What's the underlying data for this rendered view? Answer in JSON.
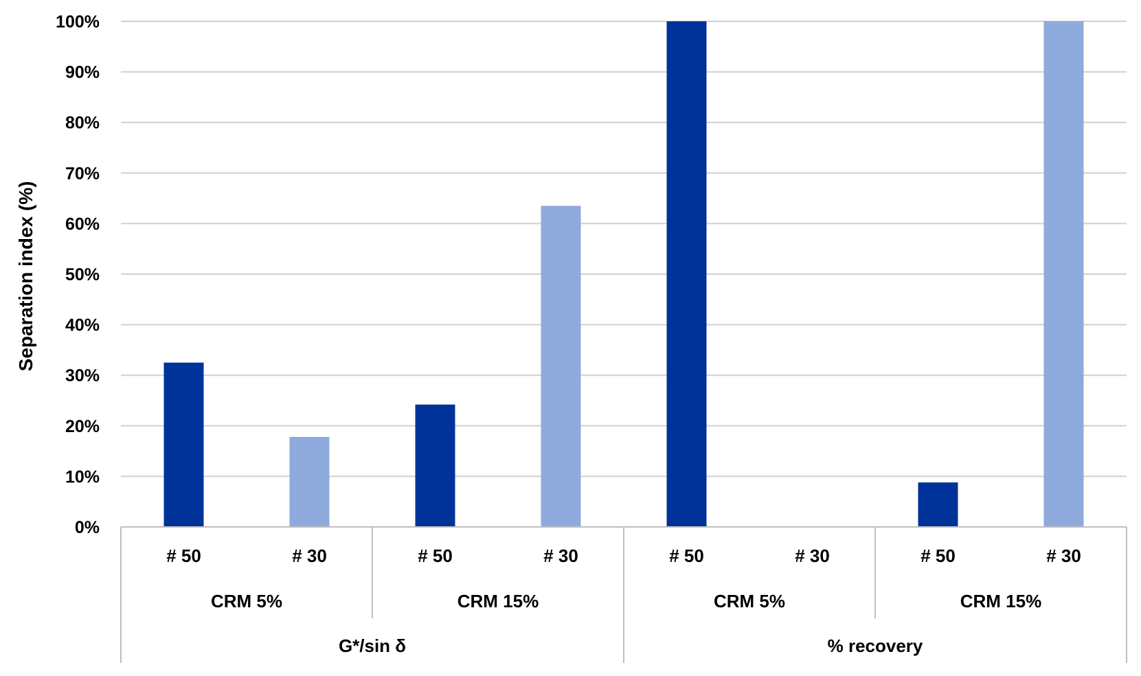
{
  "chart_data": {
    "type": "bar",
    "ylabel": "Separation index (%)",
    "ylim": [
      0,
      100
    ],
    "yticks": [
      "0%",
      "10%",
      "20%",
      "30%",
      "40%",
      "50%",
      "60%",
      "70%",
      "80%",
      "90%",
      "100%"
    ],
    "grid": true,
    "colors": {
      "# 50": "#003399",
      "# 30": "#8faadc"
    },
    "categories": [
      {
        "group": "G*/sin δ",
        "subgroup": "CRM 5%",
        "label": "# 50",
        "value": 32.5
      },
      {
        "group": "G*/sin δ",
        "subgroup": "CRM 5%",
        "label": "# 30",
        "value": 17.8
      },
      {
        "group": "G*/sin δ",
        "subgroup": "CRM 15%",
        "label": "# 50",
        "value": 24.2
      },
      {
        "group": "G*/sin δ",
        "subgroup": "CRM 15%",
        "label": "# 30",
        "value": 63.5
      },
      {
        "group": "% recovery",
        "subgroup": "CRM 5%",
        "label": "# 50",
        "value": 100
      },
      {
        "group": "% recovery",
        "subgroup": "CRM 5%",
        "label": "# 30",
        "value": 0
      },
      {
        "group": "% recovery",
        "subgroup": "CRM 15%",
        "label": "# 50",
        "value": 8.8
      },
      {
        "group": "% recovery",
        "subgroup": "CRM 15%",
        "label": "# 30",
        "value": 100
      }
    ],
    "subgroups": [
      "CRM 5%",
      "CRM 15%",
      "CRM 5%",
      "CRM 15%"
    ],
    "groups": [
      "G*/sin δ",
      "% recovery"
    ]
  }
}
